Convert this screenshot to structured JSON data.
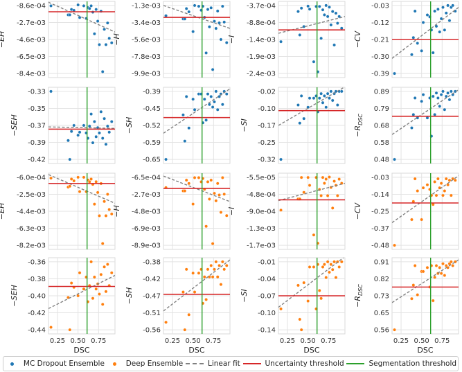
{
  "chart_data": {
    "type": "scatter",
    "xlabel": "DSC",
    "xlim": [
      0.14,
      0.95
    ],
    "xticks": [
      0.25,
      0.5,
      0.75
    ],
    "xtick_labels": [
      "0.25",
      "0.50",
      "0.75"
    ],
    "grid": true,
    "segmentation_threshold": 0.61,
    "legend": {
      "placement": "bottom",
      "items": [
        "MC Dropout Ensemble",
        "Deep Ensemble",
        "Linear fit",
        "Uncertainty threshold",
        "Segmentation threshold"
      ]
    },
    "colors": {
      "mc": "#1f77b4",
      "deep": "#ff7f0e",
      "fit": "#808080",
      "uncertainty": "#d62728",
      "segmentation": "#2ca02c"
    },
    "x": [
      0.17,
      0.38,
      0.4,
      0.42,
      0.45,
      0.5,
      0.52,
      0.57,
      0.6,
      0.62,
      0.64,
      0.66,
      0.68,
      0.7,
      0.72,
      0.74,
      0.76,
      0.78,
      0.8,
      0.82,
      0.84,
      0.86,
      0.88,
      0.91
    ],
    "panels": [
      {
        "series": "mc",
        "ylabel": "−EH",
        "ylabel_sub": "",
        "ticks": [
          -0.00086,
          -0.0027,
          -0.0046,
          -0.0065,
          -0.0084
        ],
        "tick_labels": [
          "-8.6e-04",
          "-2.7e-03",
          "-4.6e-03",
          "-6.5e-03",
          "-8.4e-03"
        ],
        "threshold": -0.00156,
        "fit": [
          -0.0005,
          -0.0038
        ],
        "y": [
          -0.0009,
          -0.0019,
          -0.0019,
          -0.0013,
          -0.0014,
          -0.0008,
          -0.0022,
          -0.0009,
          -0.0023,
          -0.0011,
          -0.0012,
          -0.0009,
          -0.0016,
          -0.004,
          -0.0013,
          -0.0026,
          -0.0052,
          -0.0015,
          -0.0082,
          -0.0035,
          -0.0052,
          -0.0028,
          -0.0045,
          -0.005
        ]
      },
      {
        "series": "mc",
        "ylabel": "−H",
        "ylabel_sub": "",
        "ticks": [
          -0.0013,
          -0.0034,
          -0.0056,
          -0.0078,
          -0.0099
        ],
        "tick_labels": [
          "-1.3e-03",
          "-3.4e-03",
          "-5.6e-03",
          "-7.8e-03",
          "-9.9e-03"
        ],
        "threshold": -0.0028,
        "fit": [
          -0.0013,
          -0.0042
        ],
        "y": [
          -0.0026,
          -0.003,
          -0.003,
          -0.0017,
          -0.0021,
          -0.0046,
          -0.0013,
          -0.0014,
          -0.0019,
          -0.0014,
          -0.0028,
          -0.0073,
          -0.0018,
          -0.004,
          -0.0016,
          -0.0094,
          -0.0033,
          -0.0042,
          -0.002,
          -0.0035,
          -0.0056,
          -0.0014,
          -0.0034,
          -0.006
        ]
      },
      {
        "series": "mc",
        "ylabel": "−I",
        "ylabel_sub": "",
        "ticks": [
          -0.00037,
          -0.00088,
          -0.0014,
          -0.0019,
          -0.0024
        ],
        "tick_labels": [
          "-3.7e-04",
          "-8.8e-04",
          "-1.4e-03",
          "-1.9e-03",
          "-2.4e-03"
        ],
        "threshold": -0.0011,
        "fit": [
          -0.0012,
          -0.0007
        ],
        "y": [
          -0.00145,
          -0.00055,
          -0.00125,
          -0.00045,
          -0.001,
          -0.00039,
          -0.00048,
          -0.00205,
          -0.0004,
          -0.00235,
          -0.0004,
          -0.00135,
          -0.0005,
          -0.00065,
          -0.00037,
          -0.0007,
          -0.00042,
          -0.00095,
          -0.00055,
          -0.00155,
          -0.0006,
          -0.0009,
          -0.0007,
          -0.00105
        ]
      },
      {
        "series": "mc",
        "ylabel": "−CV",
        "ylabel_sub": "",
        "ticks": [
          -0.03,
          -0.12,
          -0.21,
          -0.3,
          -0.39
        ],
        "tick_labels": [
          "-0.03",
          "-0.12",
          "-0.21",
          "-0.30",
          "-0.39"
        ],
        "threshold": -0.21,
        "fit": [
          -0.31,
          -0.04
        ],
        "y": [
          -0.39,
          -0.29,
          -0.2,
          -0.06,
          -0.23,
          -0.27,
          -0.12,
          -0.08,
          -0.09,
          -0.16,
          -0.28,
          -0.06,
          -0.14,
          -0.05,
          -0.17,
          -0.1,
          -0.04,
          -0.16,
          -0.07,
          -0.03,
          -0.11,
          -0.04,
          -0.03,
          -0.06
        ]
      },
      {
        "series": "mc",
        "ylabel": "−SEH",
        "ylabel_sub": "",
        "ticks": [
          -0.33,
          -0.35,
          -0.37,
          -0.39,
          -0.42
        ],
        "tick_labels": [
          "-0.33",
          "-0.35",
          "-0.37",
          "-0.39",
          "-0.42"
        ],
        "threshold": -0.38,
        "fit": [
          -0.377,
          -0.379
        ],
        "y": [
          -0.33,
          -0.395,
          -0.42,
          -0.383,
          -0.375,
          -0.388,
          -0.384,
          -0.375,
          -0.385,
          -0.392,
          -0.376,
          -0.36,
          -0.398,
          -0.37,
          -0.39,
          -0.378,
          -0.385,
          -0.357,
          -0.392,
          -0.366,
          -0.4,
          -0.376,
          -0.384,
          -0.37
        ]
      },
      {
        "series": "mc",
        "ylabel": "−SH",
        "ylabel_sub": "",
        "ticks": [
          -0.39,
          -0.45,
          -0.52,
          -0.59,
          -0.65
        ],
        "tick_labels": [
          "-0.39",
          "-0.45",
          "-0.52",
          "-0.59",
          "-0.65"
        ],
        "threshold": -0.49,
        "fit": [
          -0.55,
          -0.38
        ],
        "y": [
          -0.65,
          -0.48,
          -0.58,
          -0.41,
          -0.53,
          -0.42,
          -0.46,
          -0.4,
          -0.4,
          -0.51,
          -0.42,
          -0.5,
          -0.4,
          -0.44,
          -0.41,
          -0.45,
          -0.43,
          -0.39,
          -0.46,
          -0.41,
          -0.4,
          -0.44,
          -0.39,
          -0.4
        ]
      },
      {
        "series": "mc",
        "ylabel": "−SI",
        "ylabel_sub": "",
        "ticks": [
          -0.02,
          -0.1,
          -0.17,
          -0.25,
          -0.32
        ],
        "tick_labels": [
          "-0.02",
          "-0.10",
          "-0.17",
          "-0.25",
          "-0.32"
        ],
        "threshold": -0.105,
        "fit": [
          -0.17,
          0.0
        ],
        "y": [
          -0.32,
          -0.08,
          -0.16,
          -0.04,
          -0.14,
          -0.09,
          -0.05,
          -0.05,
          -0.04,
          -0.11,
          -0.05,
          -0.03,
          -0.07,
          -0.04,
          -0.09,
          -0.03,
          -0.05,
          -0.02,
          -0.06,
          -0.03,
          -0.02,
          -0.08,
          -0.02,
          -0.02
        ]
      },
      {
        "series": "mc",
        "ylabel": "−R",
        "ylabel_sub": "DSC",
        "ticks": [
          0.89,
          0.79,
          0.68,
          0.58,
          0.48
        ],
        "tick_labels": [
          "0.89",
          "0.79",
          "0.68",
          "0.58",
          "0.48"
        ],
        "threshold": 0.74,
        "fit": [
          0.63,
          0.9
        ],
        "y": [
          0.48,
          0.67,
          0.75,
          0.85,
          0.73,
          0.83,
          0.87,
          0.73,
          0.85,
          0.62,
          0.86,
          0.75,
          0.88,
          0.85,
          0.8,
          0.87,
          0.89,
          0.78,
          0.86,
          0.88,
          0.84,
          0.89,
          0.87,
          0.89
        ]
      },
      {
        "series": "deep",
        "ylabel": "−EH",
        "ylabel_sub": "",
        "ticks": [
          -0.0006,
          -0.0025,
          -0.0044,
          -0.0063,
          -0.0082
        ],
        "tick_labels": [
          "-6.0e-04",
          "-2.5e-03",
          "-4.4e-03",
          "-6.3e-03",
          "-8.2e-03"
        ],
        "threshold": -0.0013,
        "fit": [
          -0.0003,
          -0.0035
        ],
        "y": [
          -0.0007,
          -0.0017,
          -0.0016,
          -0.0008,
          -0.001,
          -0.0006,
          -0.0022,
          -0.0006,
          -0.0022,
          -0.0009,
          -0.0011,
          -0.0008,
          -0.0014,
          -0.0036,
          -0.0011,
          -0.0023,
          -0.0049,
          -0.0013,
          -0.008,
          -0.0033,
          -0.0049,
          -0.0025,
          -0.0042,
          -0.0047
        ]
      },
      {
        "series": "deep",
        "ylabel": "−H",
        "ylabel_sub": "",
        "ticks": [
          -0.00065,
          -0.0027,
          -0.0048,
          -0.0069,
          -0.0089
        ],
        "tick_labels": [
          "-6.5e-04",
          "-2.7e-03",
          "-4.8e-03",
          "-6.9e-03",
          "-8.9e-03"
        ],
        "threshold": -0.002,
        "fit": [
          -0.0005,
          -0.0036
        ],
        "y": [
          -0.0019,
          -0.0023,
          -0.0023,
          -0.001,
          -0.0014,
          -0.0039,
          -0.0007,
          -0.0007,
          -0.0012,
          -0.0008,
          -0.0021,
          -0.0066,
          -0.0012,
          -0.0033,
          -0.001,
          -0.0087,
          -0.0026,
          -0.0035,
          -0.0014,
          -0.0028,
          -0.0049,
          -0.0007,
          -0.0027,
          -0.0053
        ]
      },
      {
        "series": "deep",
        "ylabel": "−I",
        "ylabel_sub": "",
        "ticks": [
          -5.5e-05,
          -0.00048,
          -0.0009,
          -0.0013,
          -0.0017
        ],
        "tick_labels": [
          "-5.5e-05",
          "-4.8e-04",
          "-9.0e-04",
          "-1.3e-03",
          "-1.7e-03"
        ],
        "threshold": -0.0006,
        "fit": [
          -0.00062,
          -0.0002
        ],
        "y": [
          -0.00085,
          -0.00058,
          -0.00058,
          -6e-05,
          -0.00042,
          -6e-05,
          -0.00025,
          -0.00145,
          -6e-05,
          -0.00165,
          -0.00035,
          -0.0005,
          -6e-05,
          -0.0002,
          -0.0001,
          -0.0005,
          -5e-05,
          -0.0003,
          -0.0008,
          -0.00015,
          -0.00025,
          -0.0005,
          -0.0001,
          -0.0002
        ]
      },
      {
        "series": "deep",
        "ylabel": "−CV",
        "ylabel_sub": "",
        "ticks": [
          -0.03,
          -0.14,
          -0.25,
          -0.37,
          -0.48
        ],
        "tick_labels": [
          "-0.03",
          "-0.14",
          "-0.25",
          "-0.37",
          "-0.48"
        ],
        "threshold": -0.2,
        "fit": [
          -0.33,
          -0.02
        ],
        "y": [
          -0.48,
          -0.31,
          -0.19,
          -0.04,
          -0.12,
          -0.31,
          -0.1,
          -0.08,
          -0.11,
          -0.15,
          -0.21,
          -0.06,
          -0.15,
          -0.04,
          -0.1,
          -0.07,
          -0.15,
          -0.12,
          -0.04,
          -0.08,
          -0.05,
          -0.15,
          -0.04,
          -0.05
        ]
      },
      {
        "series": "deep",
        "ylabel": "−SEH",
        "ylabel_sub": "",
        "ticks": [
          -0.36,
          -0.38,
          -0.4,
          -0.42,
          -0.44
        ],
        "tick_labels": [
          "-0.36",
          "-0.38",
          "-0.40",
          "-0.42",
          "-0.44"
        ],
        "threshold": -0.389,
        "fit": [
          -0.415,
          -0.376
        ],
        "y": [
          -0.437,
          -0.402,
          -0.44,
          -0.385,
          -0.39,
          -0.4,
          -0.373,
          -0.392,
          -0.378,
          -0.407,
          -0.388,
          -0.36,
          -0.403,
          -0.378,
          -0.392,
          -0.386,
          -0.398,
          -0.375,
          -0.41,
          -0.366,
          -0.395,
          -0.363,
          -0.388,
          -0.373
        ]
      },
      {
        "series": "deep",
        "ylabel": "−SH",
        "ylabel_sub": "",
        "ticks": [
          -0.38,
          -0.42,
          -0.47,
          -0.51,
          -0.56
        ],
        "tick_labels": [
          "-0.38",
          "-0.42",
          "-0.47",
          "-0.51",
          "-0.56"
        ],
        "threshold": -0.466,
        "fit": [
          -0.51,
          -0.375
        ],
        "y": [
          -0.54,
          -0.46,
          -0.56,
          -0.4,
          -0.52,
          -0.41,
          -0.46,
          -0.41,
          -0.4,
          -0.49,
          -0.42,
          -0.48,
          -0.4,
          -0.42,
          -0.39,
          -0.42,
          -0.4,
          -0.38,
          -0.42,
          -0.39,
          -0.44,
          -0.38,
          -0.4,
          -0.39
        ]
      },
      {
        "series": "deep",
        "ylabel": "−SI",
        "ylabel_sub": "",
        "ticks": [
          -0.01,
          -0.04,
          -0.07,
          -0.1,
          -0.14
        ],
        "tick_labels": [
          "-0.01",
          "-0.04",
          "-0.07",
          "-0.10",
          "-0.14"
        ],
        "threshold": -0.075,
        "fit": [
          -0.097,
          0.0
        ],
        "y": [
          -0.1,
          -0.055,
          -0.12,
          -0.14,
          -0.05,
          -0.085,
          -0.02,
          -0.02,
          -0.1,
          -0.015,
          -0.065,
          -0.08,
          -0.02,
          -0.015,
          -0.04,
          -0.01,
          -0.03,
          -0.015,
          -0.025,
          -0.01,
          -0.04,
          -0.01,
          -0.02,
          -0.01
        ]
      },
      {
        "series": "deep",
        "ylabel": "−R",
        "ylabel_sub": "DSC",
        "ticks": [
          0.91,
          0.82,
          0.73,
          0.65,
          0.56
        ],
        "tick_labels": [
          "0.91",
          "0.82",
          "0.73",
          "0.65",
          "0.56"
        ],
        "threshold": 0.78,
        "fit": [
          0.7,
          0.92
        ],
        "y": [
          0.56,
          0.72,
          0.79,
          0.89,
          0.74,
          0.86,
          0.86,
          0.88,
          0.78,
          0.89,
          0.71,
          0.83,
          0.89,
          0.85,
          0.88,
          0.85,
          0.9,
          0.84,
          0.89,
          0.88,
          0.9,
          0.91,
          0.89,
          0.91
        ]
      }
    ]
  }
}
